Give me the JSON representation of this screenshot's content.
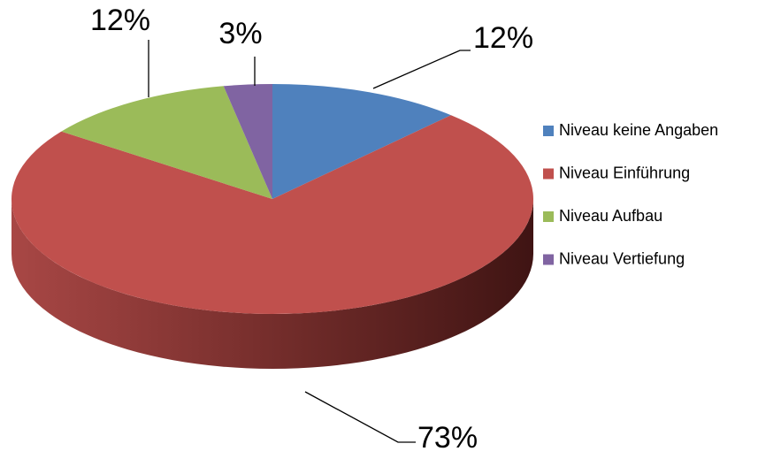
{
  "chart_data": {
    "type": "pie3d",
    "categories": [
      "Niveau keine Angaben",
      "Niveau Einführung",
      "Niveau Aufbau",
      "Niveau Vertiefung"
    ],
    "values": [
      12,
      73,
      12,
      3
    ],
    "value_labels": [
      "12%",
      "73%",
      "12%",
      "3%"
    ],
    "colors": [
      "#4f81bd",
      "#c0504d",
      "#9bbb59",
      "#8064a2"
    ],
    "legend": "right"
  }
}
